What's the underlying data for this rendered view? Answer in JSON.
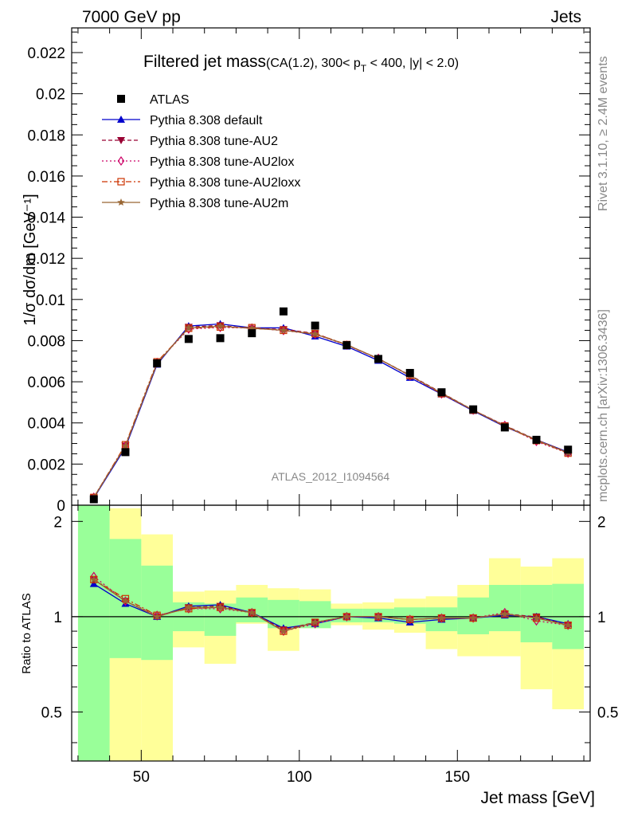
{
  "header": {
    "left": "7000 GeV pp",
    "right": "Jets"
  },
  "side_labels": {
    "rivet": "Rivet 3.1.10, ≥ 2.4M events",
    "mcplots": "mcplots.cern.ch [arXiv:1306.3436]"
  },
  "chart_data": {
    "type": "line",
    "title": "Filtered jet mass",
    "title_detail": "(CA(1.2), 300< p_T < 400, |y| < 2.0)",
    "title_detail_parts": {
      "before": "(CA(1.2), 300< p",
      "subscript": "T",
      "after": " < 400, |y| < 2.0)"
    },
    "watermark": "ATLAS_2012_I1094564",
    "xlabel": "Jet mass [GeV]",
    "ylabel": "1/σ dσ/dm [GeV⁻¹]",
    "ratio_ylabel": "Ratio to ATLAS",
    "xlim": [
      28,
      192
    ],
    "ylim": [
      0,
      0.0232
    ],
    "ratio_ylim": [
      0.35,
      2.25
    ],
    "ratio_scale": "log",
    "grid": false,
    "legend_position": "top-left",
    "x_ticks": [
      "50",
      "100",
      "150"
    ],
    "y_ticks": [
      "0",
      "0.002",
      "0.004",
      "0.006",
      "0.008",
      "0.01",
      "0.012",
      "0.014",
      "0.016",
      "0.018",
      "0.02",
      "0.022"
    ],
    "ratio_ticks": [
      "0.5",
      "1",
      "2"
    ],
    "bin_edges": [
      30,
      40,
      50,
      60,
      70,
      80,
      90,
      100,
      110,
      120,
      130,
      140,
      150,
      160,
      170,
      180,
      190
    ],
    "x": [
      35,
      45,
      55,
      65,
      75,
      85,
      95,
      105,
      115,
      125,
      135,
      145,
      155,
      165,
      175,
      185
    ],
    "data": {
      "name": "ATLAS",
      "color": "#000000",
      "values": [
        0.00029,
        0.00258,
        0.0069,
        0.00808,
        0.00812,
        0.00836,
        0.00942,
        0.00873,
        0.00778,
        0.00711,
        0.00643,
        0.00549,
        0.00466,
        0.00378,
        0.00318,
        0.0027
      ],
      "band_inner": [
        [
          0.1,
          2.4
        ],
        [
          0.74,
          1.76
        ],
        [
          0.73,
          1.45
        ],
        [
          0.9,
          1.11
        ],
        [
          0.87,
          1.1
        ],
        [
          0.96,
          1.15
        ],
        [
          0.92,
          1.13
        ],
        [
          0.92,
          1.12
        ],
        [
          0.96,
          1.06
        ],
        [
          0.96,
          1.06
        ],
        [
          0.95,
          1.07
        ],
        [
          0.9,
          1.07
        ],
        [
          0.88,
          1.15
        ],
        [
          0.9,
          1.26
        ],
        [
          0.83,
          1.26
        ],
        [
          0.79,
          1.27
        ]
      ],
      "band_outer": [
        [
          0.1,
          2.4
        ],
        [
          0.1,
          2.2
        ],
        [
          0.1,
          1.82
        ],
        [
          0.8,
          1.2
        ],
        [
          0.71,
          1.21
        ],
        [
          0.95,
          1.26
        ],
        [
          0.78,
          1.23
        ],
        [
          0.92,
          1.22
        ],
        [
          0.94,
          1.1
        ],
        [
          0.91,
          1.11
        ],
        [
          0.89,
          1.14
        ],
        [
          0.79,
          1.16
        ],
        [
          0.75,
          1.26
        ],
        [
          0.75,
          1.53
        ],
        [
          0.59,
          1.44
        ],
        [
          0.51,
          1.53
        ]
      ],
      "band_colors": {
        "inner": "#99ff99",
        "outer": "#ffff99"
      }
    },
    "series": [
      {
        "name": "Pythia 8.308 default",
        "color": "#0000cc",
        "dash": "solid",
        "marker": "triangle-up",
        "values": [
          0.00035,
          0.00281,
          0.00684,
          0.00871,
          0.00881,
          0.00862,
          0.00862,
          0.00821,
          0.00772,
          0.00703,
          0.0062,
          0.0054,
          0.00459,
          0.00382,
          0.00318,
          0.00258
        ],
        "ratio": [
          1.27,
          1.1,
          1.0,
          1.08,
          1.09,
          1.03,
          0.92,
          0.95,
          1.0,
          0.99,
          0.96,
          0.98,
          0.99,
          1.01,
          1.0,
          0.95
        ]
      },
      {
        "name": "Pythia 8.308 tune-AU2",
        "color": "#990033",
        "dash": "dashed",
        "marker": "triangle-down",
        "values": [
          0.00038,
          0.00289,
          0.00689,
          0.00866,
          0.00874,
          0.00858,
          0.00855,
          0.00835,
          0.00779,
          0.00712,
          0.00632,
          0.00547,
          0.00462,
          0.00388,
          0.00318,
          0.00256
        ],
        "ratio": [
          1.31,
          1.12,
          1.0,
          1.07,
          1.08,
          1.03,
          0.91,
          0.96,
          1.0,
          1.0,
          0.98,
          0.99,
          0.99,
          1.02,
          1.0,
          0.94
        ]
      },
      {
        "name": "Pythia 8.308 tune-AU2lox",
        "color": "#cc0066",
        "dash": "dotted",
        "marker": "diamond-open",
        "values": [
          0.00039,
          0.00289,
          0.00694,
          0.00856,
          0.00864,
          0.00861,
          0.00849,
          0.00831,
          0.00778,
          0.00714,
          0.00629,
          0.00541,
          0.00462,
          0.00388,
          0.0031,
          0.00253
        ],
        "ratio": [
          1.34,
          1.12,
          1.01,
          1.06,
          1.06,
          1.03,
          0.9,
          0.95,
          1.0,
          1.0,
          0.98,
          0.99,
          0.99,
          1.03,
          0.97,
          0.94
        ]
      },
      {
        "name": "Pythia 8.308 tune-AU2loxx",
        "color": "#cc3300",
        "dash": "dashdot",
        "marker": "square-open",
        "values": [
          0.00038,
          0.00294,
          0.00697,
          0.0086,
          0.00866,
          0.00863,
          0.0085,
          0.00834,
          0.00781,
          0.00712,
          0.0063,
          0.00542,
          0.00462,
          0.00384,
          0.00314,
          0.00253
        ],
        "ratio": [
          1.31,
          1.14,
          1.01,
          1.06,
          1.07,
          1.03,
          0.9,
          0.96,
          1.0,
          1.0,
          0.98,
          0.99,
          0.99,
          1.02,
          0.99,
          0.94
        ]
      },
      {
        "name": "Pythia 8.308 tune-AU2m",
        "color": "#996633",
        "dash": "solid",
        "marker": "star",
        "values": [
          0.00038,
          0.00288,
          0.00691,
          0.00862,
          0.0087,
          0.0086,
          0.0085,
          0.00832,
          0.0078,
          0.00713,
          0.0063,
          0.00545,
          0.00462,
          0.00386,
          0.00316,
          0.00255
        ],
        "ratio": [
          1.31,
          1.12,
          1.0,
          1.07,
          1.07,
          1.03,
          0.9,
          0.96,
          1.0,
          1.0,
          0.98,
          0.99,
          0.99,
          1.02,
          0.99,
          0.94
        ]
      }
    ]
  }
}
